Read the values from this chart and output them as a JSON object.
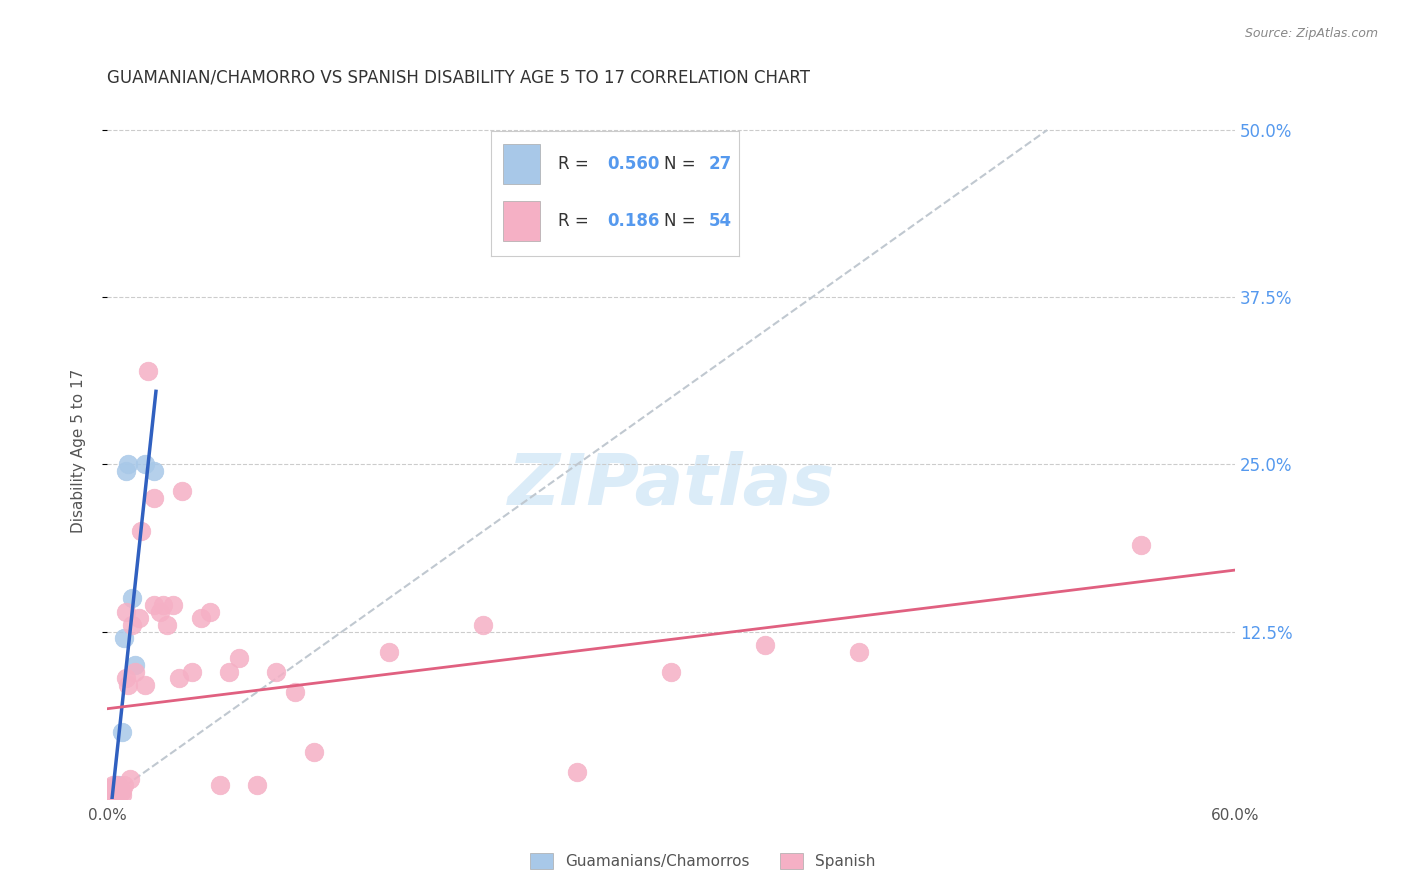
{
  "title": "GUAMANIAN/CHAMORRO VS SPANISH DISABILITY AGE 5 TO 17 CORRELATION CHART",
  "source": "Source: ZipAtlas.com",
  "ylabel": "Disability Age 5 to 17",
  "xlim": [
    0.0,
    0.6
  ],
  "ylim": [
    0.0,
    0.52
  ],
  "y_ticks_right": [
    0.125,
    0.25,
    0.375,
    0.5
  ],
  "y_tick_labels_right": [
    "12.5%",
    "25.0%",
    "37.5%",
    "50.0%"
  ],
  "legend_R1": "0.560",
  "legend_N1": "27",
  "legend_R2": "0.186",
  "legend_N2": "54",
  "color_guamanian": "#a8c8e8",
  "color_spanish": "#f5b0c5",
  "color_line_guamanian": "#3060c0",
  "color_line_spanish": "#e06080",
  "color_diagonal": "#c0c8d0",
  "color_right_labels": "#5599ee",
  "background_color": "#ffffff",
  "guamanian_x": [
    0.001,
    0.001,
    0.002,
    0.002,
    0.002,
    0.003,
    0.003,
    0.003,
    0.004,
    0.004,
    0.004,
    0.005,
    0.005,
    0.005,
    0.006,
    0.006,
    0.006,
    0.007,
    0.007,
    0.008,
    0.009,
    0.01,
    0.011,
    0.013,
    0.015,
    0.02,
    0.025
  ],
  "guamanian_y": [
    0.003,
    0.006,
    0.002,
    0.004,
    0.007,
    0.003,
    0.005,
    0.008,
    0.003,
    0.006,
    0.009,
    0.002,
    0.005,
    0.009,
    0.003,
    0.006,
    0.01,
    0.004,
    0.007,
    0.05,
    0.12,
    0.245,
    0.25,
    0.15,
    0.1,
    0.25,
    0.245
  ],
  "spanish_x": [
    0.001,
    0.001,
    0.002,
    0.002,
    0.003,
    0.003,
    0.003,
    0.004,
    0.004,
    0.005,
    0.005,
    0.005,
    0.006,
    0.006,
    0.007,
    0.007,
    0.008,
    0.008,
    0.009,
    0.01,
    0.01,
    0.011,
    0.012,
    0.013,
    0.015,
    0.017,
    0.018,
    0.02,
    0.022,
    0.025,
    0.025,
    0.028,
    0.03,
    0.032,
    0.035,
    0.038,
    0.04,
    0.045,
    0.05,
    0.055,
    0.06,
    0.065,
    0.07,
    0.08,
    0.09,
    0.1,
    0.11,
    0.15,
    0.2,
    0.25,
    0.3,
    0.35,
    0.4,
    0.55
  ],
  "spanish_y": [
    0.003,
    0.008,
    0.002,
    0.006,
    0.004,
    0.007,
    0.01,
    0.003,
    0.007,
    0.003,
    0.006,
    0.01,
    0.003,
    0.007,
    0.004,
    0.008,
    0.003,
    0.006,
    0.01,
    0.09,
    0.14,
    0.085,
    0.015,
    0.13,
    0.095,
    0.135,
    0.2,
    0.085,
    0.32,
    0.145,
    0.225,
    0.14,
    0.145,
    0.13,
    0.145,
    0.09,
    0.23,
    0.095,
    0.135,
    0.14,
    0.01,
    0.095,
    0.105,
    0.01,
    0.095,
    0.08,
    0.035,
    0.11,
    0.13,
    0.02,
    0.095,
    0.115,
    0.11,
    0.19
  ]
}
